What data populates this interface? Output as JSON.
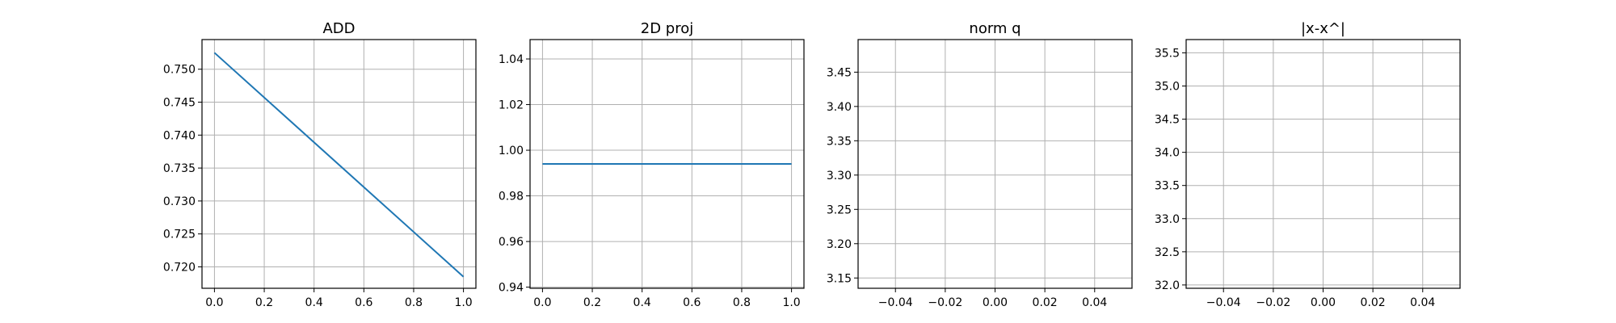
{
  "chart_data": [
    {
      "type": "line",
      "title": "ADD",
      "xlim": [
        -0.05,
        1.05
      ],
      "ylim": [
        0.71675,
        0.7545
      ],
      "xticks": [
        0.0,
        0.2,
        0.4,
        0.6,
        0.8,
        1.0
      ],
      "xtick_labels": [
        "0.0",
        "0.2",
        "0.4",
        "0.6",
        "0.8",
        "1.0"
      ],
      "yticks": [
        0.72,
        0.725,
        0.73,
        0.735,
        0.74,
        0.745,
        0.75
      ],
      "ytick_labels": [
        "0.720",
        "0.725",
        "0.730",
        "0.735",
        "0.740",
        "0.745",
        "0.750"
      ],
      "grid": true,
      "series": [
        {
          "color": "#1f77b4",
          "x": [
            0.0,
            1.0
          ],
          "y": [
            0.7525,
            0.7185
          ]
        }
      ]
    },
    {
      "type": "line",
      "title": "2D proj",
      "xlim": [
        -0.05,
        1.05
      ],
      "ylim": [
        0.9395,
        1.0485
      ],
      "xticks": [
        0.0,
        0.2,
        0.4,
        0.6,
        0.8,
        1.0
      ],
      "xtick_labels": [
        "0.0",
        "0.2",
        "0.4",
        "0.6",
        "0.8",
        "1.0"
      ],
      "yticks": [
        0.94,
        0.96,
        0.98,
        1.0,
        1.02,
        1.04
      ],
      "ytick_labels": [
        "0.94",
        "0.96",
        "0.98",
        "1.00",
        "1.02",
        "1.04"
      ],
      "grid": true,
      "series": [
        {
          "color": "#1f77b4",
          "x": [
            0.0,
            1.0
          ],
          "y": [
            0.994,
            0.994
          ]
        }
      ]
    },
    {
      "type": "line",
      "title": "norm q",
      "xlim": [
        -0.055,
        0.055
      ],
      "ylim": [
        3.135,
        3.4975
      ],
      "xticks": [
        -0.04,
        -0.02,
        0.0,
        0.02,
        0.04
      ],
      "xtick_labels": [
        "−0.04",
        "−0.02",
        "0.00",
        "0.02",
        "0.04"
      ],
      "yticks": [
        3.15,
        3.2,
        3.25,
        3.3,
        3.35,
        3.4,
        3.45
      ],
      "ytick_labels": [
        "3.15",
        "3.20",
        "3.25",
        "3.30",
        "3.35",
        "3.40",
        "3.45"
      ],
      "grid": true,
      "series": []
    },
    {
      "type": "line",
      "title": "|x-x^|",
      "xlim": [
        -0.055,
        0.055
      ],
      "ylim": [
        31.95,
        35.7
      ],
      "xticks": [
        -0.04,
        -0.02,
        0.0,
        0.02,
        0.04
      ],
      "xtick_labels": [
        "−0.04",
        "−0.02",
        "0.00",
        "0.02",
        "0.04"
      ],
      "yticks": [
        32.0,
        32.5,
        33.0,
        33.5,
        34.0,
        34.5,
        35.0,
        35.5
      ],
      "ytick_labels": [
        "32.0",
        "32.5",
        "33.0",
        "33.5",
        "34.0",
        "34.5",
        "35.0",
        "35.5"
      ],
      "grid": true,
      "series": []
    }
  ]
}
